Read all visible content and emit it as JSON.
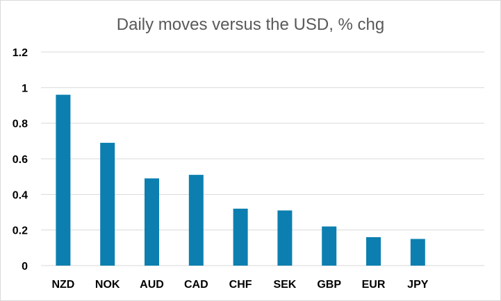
{
  "chart_data": {
    "type": "bar",
    "title": "Daily  moves versus the USD, % chg",
    "categories": [
      "NZD",
      "NOK",
      "AUD",
      "CAD",
      "CHF",
      "SEK",
      "GBP",
      "EUR",
      "JPY",
      ""
    ],
    "values": [
      0.96,
      0.69,
      0.49,
      0.51,
      0.32,
      0.31,
      0.22,
      0.16,
      0.15,
      null
    ],
    "y_ticks": [
      "0",
      "0.2",
      "0.4",
      "0.6",
      "0.8",
      "1",
      "1.2"
    ],
    "ylim": [
      0,
      1.2
    ],
    "grid": true,
    "legend": "none",
    "xlabel": "",
    "ylabel": "",
    "bar_color": "#0c7fb0",
    "grid_color": "#d9d9d9"
  }
}
